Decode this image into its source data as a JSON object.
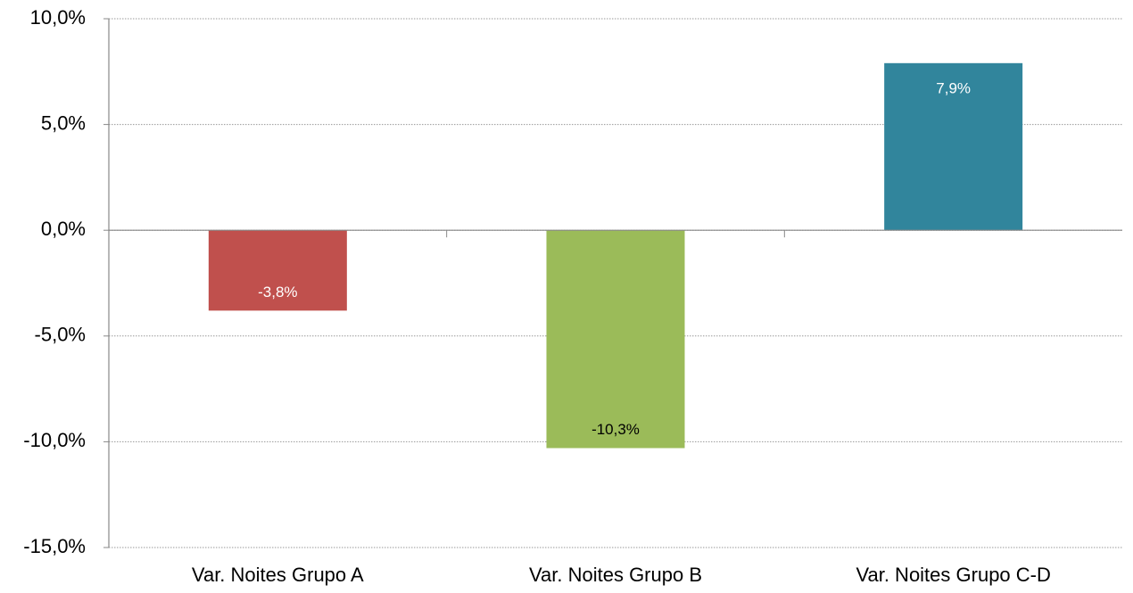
{
  "chart_data": {
    "type": "bar",
    "categories": [
      "Var. Noites Grupo A",
      "Var. Noites Grupo B",
      "Var. Noites Grupo C-D"
    ],
    "values": [
      -3.8,
      -10.3,
      7.9
    ],
    "value_labels": [
      "-3,8%",
      "-10,3%",
      "7,9%"
    ],
    "colors": [
      "#c0504d",
      "#9bbb59",
      "#31859c"
    ],
    "value_label_colors": [
      "#ffffff",
      "#000000",
      "#ffffff"
    ],
    "ylim": [
      -15,
      10
    ],
    "yticks": [
      {
        "value": -15,
        "label": "-15,0%"
      },
      {
        "value": -10,
        "label": "-10,0%"
      },
      {
        "value": -5,
        "label": "-5,0%"
      },
      {
        "value": 0,
        "label": "0,0%"
      },
      {
        "value": 5,
        "label": "5,0%"
      },
      {
        "value": 10,
        "label": "10,0%"
      }
    ],
    "grid": true
  }
}
